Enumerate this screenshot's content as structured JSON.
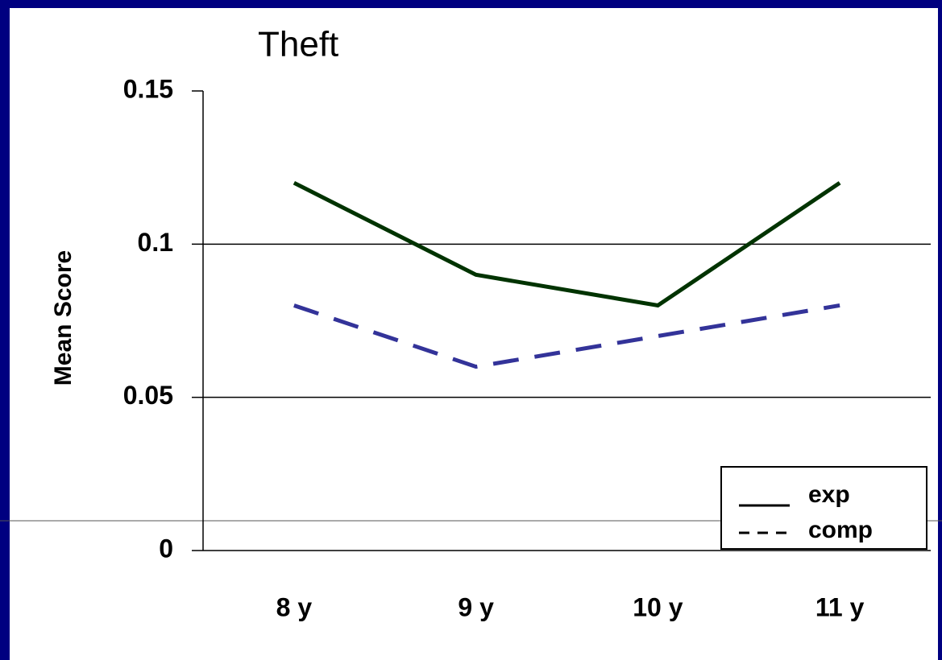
{
  "chart_data": {
    "type": "line",
    "title": "Theft",
    "ylabel": "Mean Score",
    "categories": [
      "8 y",
      "9 y",
      "10 y",
      "11 y"
    ],
    "series": [
      {
        "name": "exp",
        "color": "#003300",
        "dash": false,
        "values": [
          0.12,
          0.09,
          0.08,
          0.12
        ]
      },
      {
        "name": "comp",
        "color": "#333399",
        "dash": true,
        "values": [
          0.08,
          0.06,
          0.07,
          0.08
        ]
      }
    ],
    "ylim": [
      0,
      0.15
    ],
    "yticks": [
      0,
      0.05,
      0.1,
      0.15
    ],
    "grid": true,
    "legend": "lower right"
  }
}
